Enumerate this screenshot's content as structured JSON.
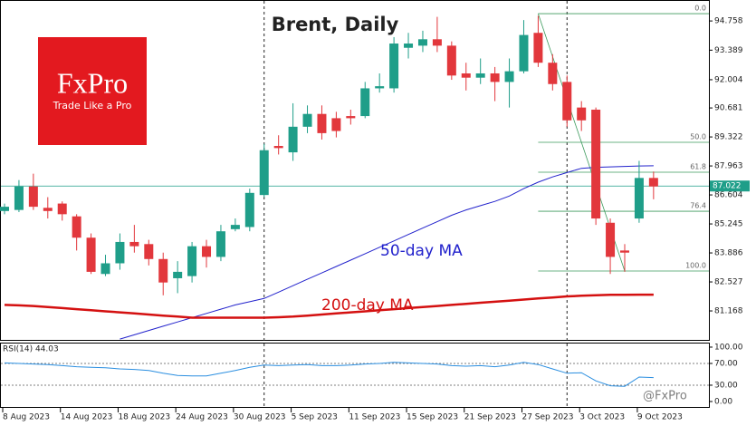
{
  "chart_data": [
    {
      "type": "candlestick",
      "title": "Brent, Daily",
      "categories": [
        "8 Aug 2023",
        null,
        null,
        null,
        "14 Aug 2023",
        null,
        null,
        null,
        "18 Aug 2023",
        null,
        null,
        null,
        "24 Aug 2023",
        null,
        null,
        null,
        "30 Aug 2023",
        null,
        null,
        null,
        "5 Sep 2023",
        null,
        null,
        null,
        "11 Sep 2023",
        null,
        null,
        null,
        "15 Sep 2023",
        null,
        null,
        null,
        "21 Sep 2023",
        null,
        null,
        null,
        "27 Sep 2023",
        null,
        null,
        null,
        "3 Oct 2023",
        null,
        null,
        null,
        "9 Oct 2023",
        null
      ],
      "open": [
        85.85,
        85.9,
        87.0,
        86.0,
        86.2,
        85.6,
        84.6,
        82.9,
        83.4,
        84.4,
        84.3,
        83.6,
        82.7,
        82.8,
        84.2,
        83.7,
        85.0,
        85.1,
        86.6,
        88.9,
        88.6,
        89.8,
        90.4,
        90.2,
        90.3,
        90.3,
        91.6,
        91.6,
        93.5,
        93.6,
        93.9,
        93.6,
        92.3,
        92.1,
        92.3,
        91.9,
        92.4,
        94.2,
        92.8,
        91.9,
        90.7,
        90.6,
        85.3,
        84.0,
        85.5,
        87.4
      ],
      "high": [
        86.2,
        87.3,
        87.6,
        86.5,
        86.3,
        85.7,
        84.8,
        83.8,
        84.8,
        85.2,
        84.5,
        83.9,
        83.5,
        84.4,
        84.5,
        85.2,
        85.5,
        86.9,
        89.0,
        89.4,
        90.9,
        90.8,
        90.8,
        90.5,
        90.6,
        91.9,
        92.3,
        94.0,
        94.2,
        94.3,
        94.95,
        93.8,
        92.8,
        93.0,
        92.6,
        93.0,
        94.8,
        95.0,
        93.2,
        92.2,
        91.0,
        90.7,
        85.5,
        84.3,
        88.2,
        87.7
      ],
      "low": [
        85.7,
        85.8,
        85.9,
        85.5,
        85.4,
        84.0,
        82.9,
        82.8,
        83.1,
        83.9,
        83.3,
        81.9,
        82.0,
        82.5,
        83.2,
        83.5,
        84.9,
        84.9,
        86.5,
        88.5,
        88.2,
        89.5,
        89.2,
        89.3,
        89.9,
        90.2,
        91.4,
        91.4,
        93.0,
        93.3,
        93.3,
        92.0,
        91.5,
        91.8,
        91.0,
        90.7,
        92.3,
        92.6,
        91.5,
        89.8,
        89.6,
        85.2,
        82.9,
        83.0,
        85.3,
        86.4
      ],
      "close": [
        86.05,
        87.0,
        86.05,
        85.85,
        85.7,
        84.6,
        83.0,
        83.4,
        84.4,
        84.2,
        83.6,
        82.5,
        83.0,
        84.2,
        83.7,
        84.9,
        85.2,
        86.7,
        88.7,
        88.8,
        89.8,
        90.4,
        89.5,
        89.6,
        90.2,
        91.6,
        91.7,
        93.7,
        93.7,
        93.9,
        93.6,
        92.2,
        92.1,
        92.3,
        91.9,
        92.4,
        94.1,
        92.8,
        91.8,
        90.1,
        90.1,
        85.5,
        83.7,
        83.9,
        87.4,
        87.0
      ],
      "up_color": "#1f9e89",
      "down_color": "#e2373c",
      "series": [
        {
          "name": "50-day MA",
          "color": "#2222cc",
          "values": [
            null,
            null,
            null,
            null,
            null,
            null,
            null,
            null,
            79.85,
            80.05,
            80.25,
            80.45,
            80.65,
            80.85,
            81.05,
            81.25,
            81.45,
            81.6,
            81.75,
            82.05,
            82.35,
            82.65,
            82.95,
            83.25,
            83.55,
            83.85,
            84.15,
            84.45,
            84.75,
            85.05,
            85.35,
            85.65,
            85.9,
            86.1,
            86.3,
            86.55,
            86.9,
            87.2,
            87.45,
            87.65,
            87.85,
            87.9,
            87.92,
            87.94,
            87.96,
            87.97
          ]
        },
        {
          "name": "200-day MA",
          "color": "#d41010",
          "values": [
            81.45,
            81.43,
            81.4,
            81.35,
            81.3,
            81.25,
            81.2,
            81.15,
            81.1,
            81.05,
            81.0,
            80.95,
            80.9,
            80.85,
            80.85,
            80.85,
            80.85,
            80.85,
            80.85,
            80.87,
            80.9,
            80.95,
            81.0,
            81.05,
            81.1,
            81.15,
            81.2,
            81.25,
            81.3,
            81.35,
            81.4,
            81.45,
            81.5,
            81.55,
            81.6,
            81.65,
            81.7,
            81.75,
            81.8,
            81.85,
            81.88,
            81.9,
            81.92,
            81.92,
            81.93,
            81.93
          ]
        }
      ],
      "current_price": 87.022,
      "fibonacci": {
        "levels": [
          {
            "value": 0,
            "label": "0.0"
          },
          {
            "value": 50,
            "label": "50.0"
          },
          {
            "value": 61.8,
            "label": "61.8"
          },
          {
            "value": 76.4,
            "label": "76.4"
          },
          {
            "value": 100,
            "label": "100.0"
          }
        ],
        "prices": [
          95.1,
          89.07,
          87.67,
          85.84,
          83.04
        ],
        "color": "#3c9a5c"
      },
      "ylim": [
        79.81,
        95.74
      ],
      "yticks": [
        94.758,
        93.389,
        92.004,
        90.681,
        89.322,
        87.963,
        86.604,
        85.245,
        83.886,
        82.527,
        81.168
      ],
      "logo": {
        "brand": "FxPro",
        "tagline": "Trade Like a Pro",
        "color": "#e3191f"
      },
      "watermark": "@FxPro"
    },
    {
      "type": "line",
      "title": "RSI(14) 44.03",
      "color": "#2a8ee0",
      "values": [
        71,
        70,
        69,
        68,
        66,
        64,
        63,
        62,
        60,
        59,
        57,
        52,
        48,
        47,
        47,
        52,
        57,
        63,
        67,
        66,
        67,
        68,
        66,
        66,
        67,
        69,
        70,
        72,
        71,
        70,
        69,
        66,
        65,
        66,
        64,
        67,
        72,
        68,
        60,
        52,
        53,
        38,
        29,
        28,
        45,
        44.03
      ],
      "ylim": [
        -11.7,
        108.3
      ],
      "yticks": [
        {
          "value": 100,
          "label": "100.00"
        },
        {
          "value": 70,
          "label": "70.00"
        },
        {
          "value": 30,
          "label": "30.00"
        },
        {
          "value": 0,
          "label": "0.00"
        }
      ]
    }
  ]
}
